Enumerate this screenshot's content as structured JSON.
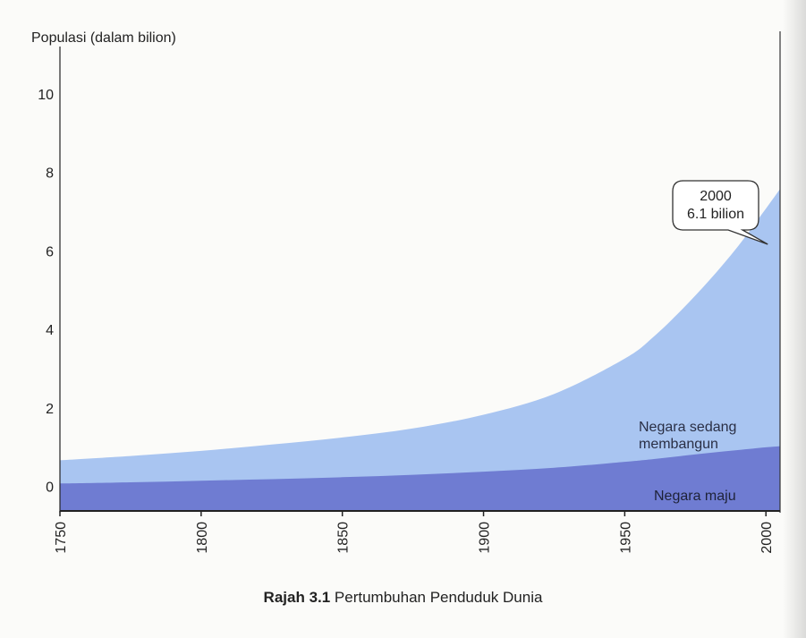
{
  "chart_data": {
    "type": "area",
    "stacked": true,
    "ylabel": "Populasi (dalam bilion)",
    "xlim": [
      1750,
      2005
    ],
    "ylim": [
      -0.6,
      11.5
    ],
    "y_ticks": [
      0,
      2,
      4,
      6,
      8,
      10
    ],
    "x_ticks": [
      1750,
      1800,
      1850,
      1900,
      1950,
      2000
    ],
    "grid": false,
    "x": [
      1750,
      1775,
      1800,
      1825,
      1850,
      1875,
      1900,
      1925,
      1950,
      1960,
      1970,
      1980,
      1990,
      2000,
      2005
    ],
    "series": [
      {
        "name": "Negara maju",
        "values": [
          0.1,
          0.13,
          0.17,
          0.21,
          0.26,
          0.32,
          0.4,
          0.5,
          0.65,
          0.72,
          0.8,
          0.88,
          0.95,
          1.02,
          1.05
        ],
        "color": "#6f7cd2"
      },
      {
        "name": "Negara sedang membangun",
        "values": [
          0.59,
          0.67,
          0.76,
          0.88,
          1.01,
          1.18,
          1.45,
          1.88,
          2.63,
          3.1,
          3.71,
          4.4,
          5.18,
          6.08,
          6.55
        ],
        "color": "#a9c5f1"
      }
    ],
    "series_labels": [
      "Negara sedang\nmembangun",
      "Negara maju"
    ],
    "annotation": {
      "x": 2000,
      "y": 6.1,
      "lines": [
        "2000",
        "6.1 bilion"
      ]
    }
  },
  "caption": {
    "bold": "Rajah 3.1",
    "text": " Pertumbuhan Penduduk Dunia"
  }
}
